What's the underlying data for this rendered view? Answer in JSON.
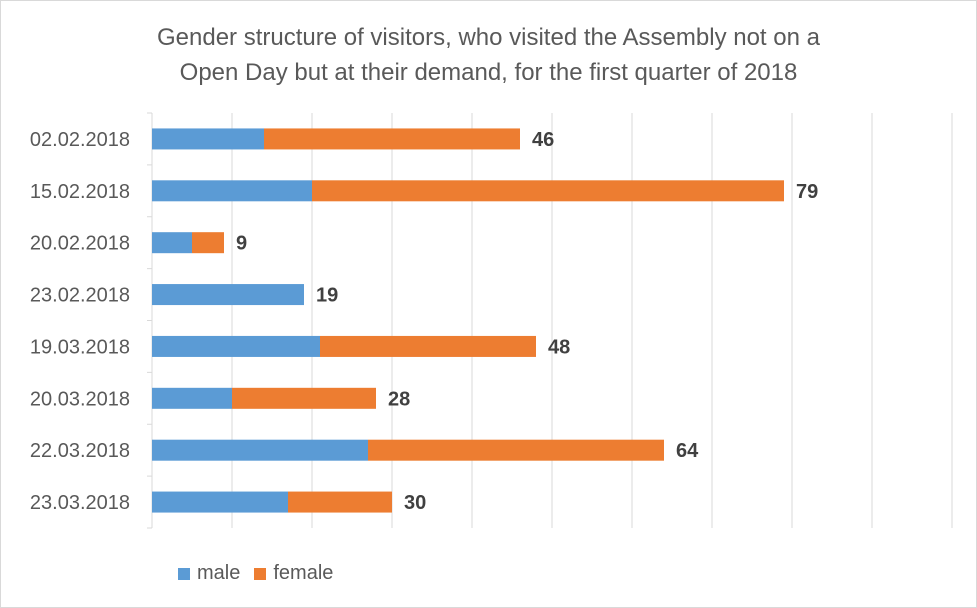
{
  "title_lines": [
    "Gender structure of visitors, who visited the Assembly not on a",
    "Open Day but at their demand, for the first quarter of 2018"
  ],
  "colors": {
    "male": "#5b9bd5",
    "female": "#ed7d31",
    "grid": "#d9d9d9",
    "text": "#595959",
    "label": "#404040"
  },
  "legend": {
    "male": "male",
    "female": "female"
  },
  "chart_data": {
    "type": "bar",
    "orientation": "horizontal",
    "stacked": true,
    "title": "Gender structure of visitors, who visited the Assembly not on a Open Day but at their demand, for the first quarter of 2018",
    "categories": [
      "02.02.2018",
      "15.02.2018",
      "20.02.2018",
      "23.02.2018",
      "19.03.2018",
      "20.03.2018",
      "22.03.2018",
      "23.03.2018"
    ],
    "series": [
      {
        "name": "male",
        "values": [
          14,
          20,
          5,
          19,
          21,
          10,
          27,
          17
        ]
      },
      {
        "name": "female",
        "values": [
          32,
          59,
          4,
          0,
          27,
          18,
          37,
          13
        ]
      }
    ],
    "totals": [
      46,
      79,
      9,
      19,
      48,
      28,
      64,
      30
    ],
    "xlim": [
      0,
      100
    ],
    "grid": true,
    "legend_position": "bottom-left"
  }
}
